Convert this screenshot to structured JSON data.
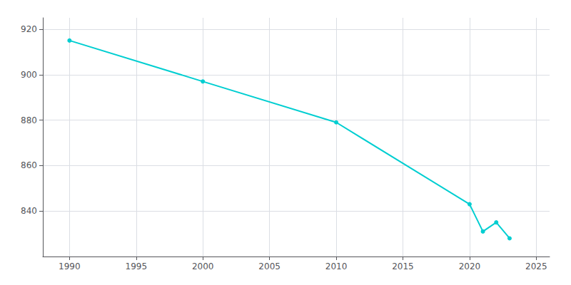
{
  "chart_data": {
    "type": "line",
    "x": [
      1990,
      2000,
      2010,
      2020,
      2021,
      2022,
      2023
    ],
    "values": [
      915,
      897,
      879,
      843,
      831,
      835,
      828
    ],
    "color": "#00CED1",
    "marker": "circle",
    "xlim": [
      1988,
      2026
    ],
    "ylim": [
      820,
      925
    ],
    "xticks": [
      1990,
      1995,
      2000,
      2005,
      2010,
      2015,
      2020,
      2025
    ],
    "yticks": [
      840,
      860,
      880,
      900,
      920
    ],
    "grid": true
  }
}
